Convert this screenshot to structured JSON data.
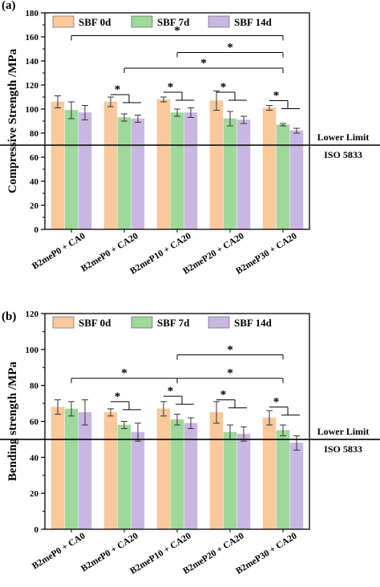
{
  "chart_data": [
    {
      "type": "bar",
      "panel_label": "(a)",
      "ylabel": "Compressive Strength /MPa",
      "ylim": [
        0,
        180
      ],
      "yticks": [
        0,
        20,
        40,
        60,
        80,
        100,
        120,
        140,
        160,
        180
      ],
      "categories": [
        "B2meP0 + CA0",
        "B2meP0 + CA20",
        "B2meP10 + CA20",
        "B2meP20 + CA20",
        "B2meP30 + CA20"
      ],
      "series": [
        {
          "name": "SBF 0d",
          "color": "#F9C89B",
          "values": [
            106,
            106,
            108,
            107,
            101
          ],
          "errors": [
            5,
            4,
            2,
            8,
            2
          ]
        },
        {
          "name": "SBF 7d",
          "color": "#9ED89A",
          "values": [
            99,
            93,
            97,
            92,
            87
          ],
          "errors": [
            7,
            3,
            3,
            6,
            1
          ]
        },
        {
          "name": "SBF 14d",
          "color": "#C8B7E0",
          "values": [
            97,
            92,
            97,
            91,
            82
          ],
          "errors": [
            6,
            3,
            4,
            3,
            2
          ]
        }
      ],
      "legend_position": "top",
      "reference_line": {
        "value": 70,
        "label_top": "Lower Limit",
        "label_bottom": "ISO 5833"
      },
      "significance": [
        {
          "type": "group",
          "group": 1,
          "level": 112,
          "text": "*"
        },
        {
          "type": "group",
          "group": 2,
          "level": 114,
          "text": "*"
        },
        {
          "type": "group",
          "group": 3,
          "level": 114,
          "text": "*"
        },
        {
          "type": "group",
          "group": 4,
          "level": 107,
          "text": "*"
        },
        {
          "type": "between",
          "from": 0,
          "to": 4,
          "level": 161,
          "text": "*"
        },
        {
          "type": "between",
          "from": 1,
          "to": 4,
          "level": 134,
          "text": "*"
        },
        {
          "type": "between",
          "from": 2,
          "to": 4,
          "level": 147,
          "text": "*"
        }
      ]
    },
    {
      "type": "bar",
      "panel_label": "(b)",
      "ylabel": "Bending strength /MPa",
      "ylim": [
        0,
        120
      ],
      "yticks": [
        0,
        20,
        40,
        60,
        80,
        100,
        120
      ],
      "categories": [
        "B2meP0 + CA0",
        "B2meP0 + CA20",
        "B2meP10 + CA20",
        "B2meP20 + CA20",
        "B2meP30 + CA20"
      ],
      "series": [
        {
          "name": "SBF 0d",
          "color": "#F9C89B",
          "values": [
            68,
            65,
            67,
            65,
            62
          ],
          "errors": [
            4,
            2,
            4,
            6,
            4
          ]
        },
        {
          "name": "SBF 7d",
          "color": "#9ED89A",
          "values": [
            67,
            58,
            61,
            54,
            55
          ],
          "errors": [
            4,
            2,
            3,
            4,
            3
          ]
        },
        {
          "name": "SBF 14d",
          "color": "#C8B7E0",
          "values": [
            65,
            54,
            59,
            53,
            48
          ],
          "errors": [
            7,
            5,
            3,
            4,
            4
          ]
        }
      ],
      "legend_position": "top",
      "reference_line": {
        "value": 50,
        "label_top": "Lower Limit",
        "label_bottom": "ISO 5833"
      },
      "significance": [
        {
          "type": "group",
          "group": 1,
          "level": 71,
          "text": "*"
        },
        {
          "type": "group",
          "group": 2,
          "level": 74,
          "text": "*"
        },
        {
          "type": "group",
          "group": 3,
          "level": 72,
          "text": "*"
        },
        {
          "type": "group",
          "group": 4,
          "level": 68,
          "text": "*"
        },
        {
          "type": "between",
          "from": 0,
          "to": 2,
          "level": 84,
          "text": "*"
        },
        {
          "type": "between",
          "from": 2,
          "to": 4,
          "level": 84,
          "text": "*"
        },
        {
          "type": "between",
          "from": 2,
          "to": 4,
          "level": 97,
          "text": "*"
        }
      ]
    }
  ]
}
